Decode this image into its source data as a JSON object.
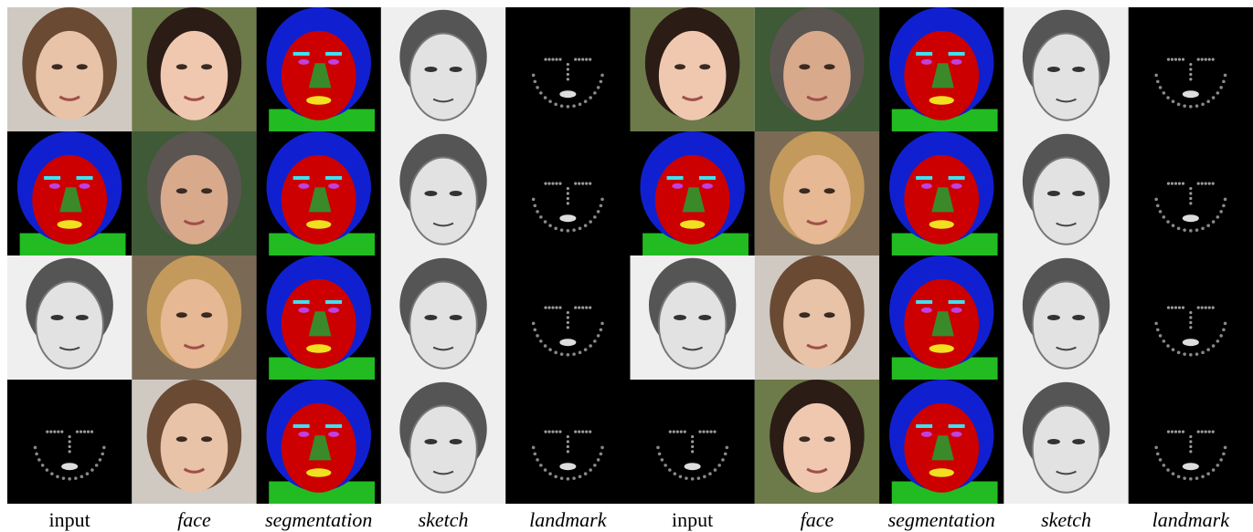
{
  "captions": [
    "input",
    "face",
    "segmentation",
    "sketch",
    "landmark",
    "input",
    "face",
    "segmentation",
    "sketch",
    "landmark"
  ]
}
